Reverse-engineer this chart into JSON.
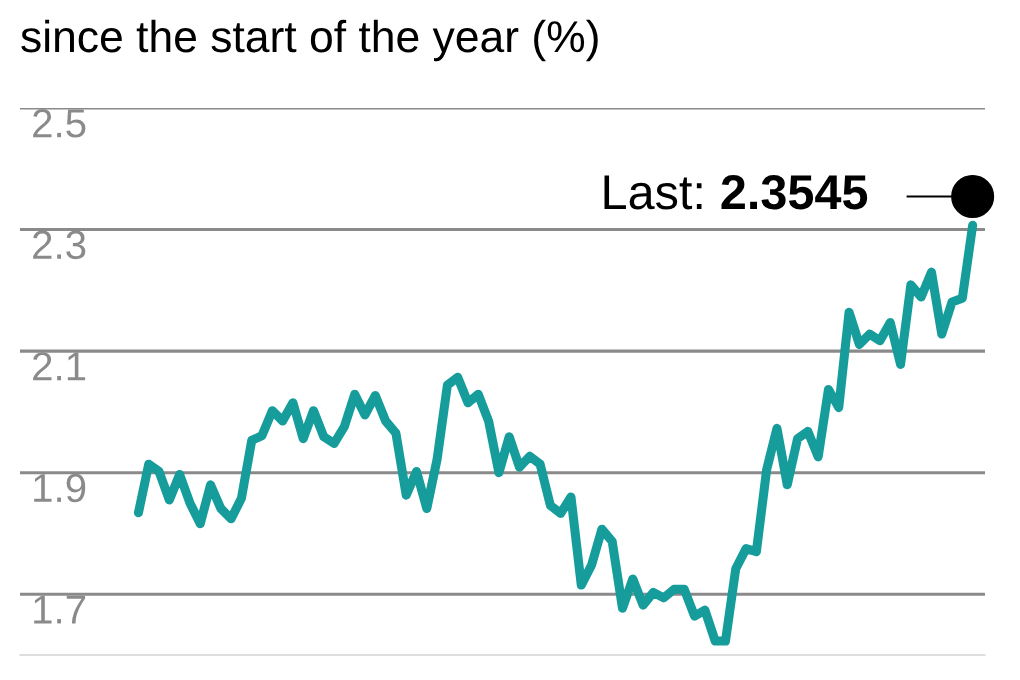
{
  "chart_data": {
    "type": "line",
    "title": "since the start of the year (%)",
    "categories": [
      null,
      null,
      null,
      null,
      null,
      null,
      null,
      null,
      null,
      null,
      null,
      null,
      null,
      null,
      null,
      null,
      null,
      null,
      null,
      null,
      null,
      null,
      null,
      null,
      null,
      null,
      null,
      null,
      null,
      null,
      null,
      null,
      null,
      null,
      null,
      null,
      null,
      null,
      null,
      null,
      null,
      null,
      null,
      null,
      null,
      null,
      null,
      null,
      null,
      null,
      null,
      null,
      null,
      null,
      null,
      null,
      null,
      null,
      null,
      null,
      null,
      null,
      null,
      null,
      null,
      null,
      null,
      null,
      null,
      null,
      null,
      null,
      null,
      null,
      null,
      null,
      null,
      null,
      null,
      null,
      null,
      null
    ],
    "series": [
      {
        "color": "#179c9c",
        "values": [
          1.834,
          1.914,
          1.902,
          1.855,
          1.897,
          1.85,
          1.816,
          1.88,
          1.841,
          1.824,
          1.858,
          1.953,
          1.961,
          2.002,
          1.985,
          2.015,
          1.956,
          2.002,
          1.959,
          1.948,
          1.976,
          2.029,
          1.995,
          2.027,
          1.985,
          1.965,
          1.863,
          1.902,
          1.841,
          1.922,
          2.044,
          2.057,
          2.015,
          2.029,
          1.985,
          1.9,
          1.959,
          1.909,
          1.927,
          1.914,
          1.846,
          1.833,
          1.86,
          1.715,
          1.748,
          1.807,
          1.787,
          1.677,
          1.725,
          1.682,
          1.703,
          1.694,
          1.708,
          1.708,
          1.664,
          1.674,
          1.623,
          1.623,
          1.742,
          1.775,
          1.77,
          1.905,
          1.973,
          1.88,
          1.956,
          1.968,
          1.926,
          2.037,
          2.007,
          2.164,
          2.111,
          2.128,
          2.117,
          2.147,
          2.078,
          2.209,
          2.189,
          2.23,
          2.128,
          2.181,
          2.187,
          2.307
        ]
      },
      {
        "type": "scatter",
        "marker": "circle",
        "color": "#000000",
        "value_labels": [
          null,
          null,
          null,
          null,
          null,
          null,
          null,
          null,
          null,
          null,
          null,
          null,
          null,
          null,
          null,
          null,
          null,
          null,
          null,
          null,
          null,
          null,
          null,
          null,
          null,
          null,
          null,
          null,
          null,
          null,
          null,
          null,
          null,
          null,
          null,
          null,
          null,
          null,
          null,
          null,
          null,
          null,
          null,
          null,
          null,
          null,
          null,
          null,
          null,
          null,
          null,
          null,
          null,
          null,
          null,
          null,
          null,
          null,
          null,
          null,
          null,
          null,
          null,
          null,
          null,
          null,
          null,
          null,
          null,
          null,
          null,
          null,
          null,
          null,
          null,
          null,
          null,
          null,
          null,
          null,
          null,
          "2.3545"
        ],
        "values": [
          null,
          null,
          null,
          null,
          null,
          null,
          null,
          null,
          null,
          null,
          null,
          null,
          null,
          null,
          null,
          null,
          null,
          null,
          null,
          null,
          null,
          null,
          null,
          null,
          null,
          null,
          null,
          null,
          null,
          null,
          null,
          null,
          null,
          null,
          null,
          null,
          null,
          null,
          null,
          null,
          null,
          null,
          null,
          null,
          null,
          null,
          null,
          null,
          null,
          null,
          null,
          null,
          null,
          null,
          null,
          null,
          null,
          null,
          null,
          null,
          null,
          null,
          null,
          null,
          null,
          null,
          null,
          null,
          null,
          null,
          null,
          null,
          null,
          null,
          null,
          null,
          null,
          null,
          null,
          null,
          null,
          2.3545
        ]
      }
    ],
    "annotations": [
      "Last:"
    ],
    "ylim": [
      1.6,
      2.5
    ],
    "yticks": [
      1.7,
      1.9,
      2.1,
      2.3,
      2.5
    ],
    "grid": "y",
    "marker": "none",
    "line_style": "solid"
  }
}
